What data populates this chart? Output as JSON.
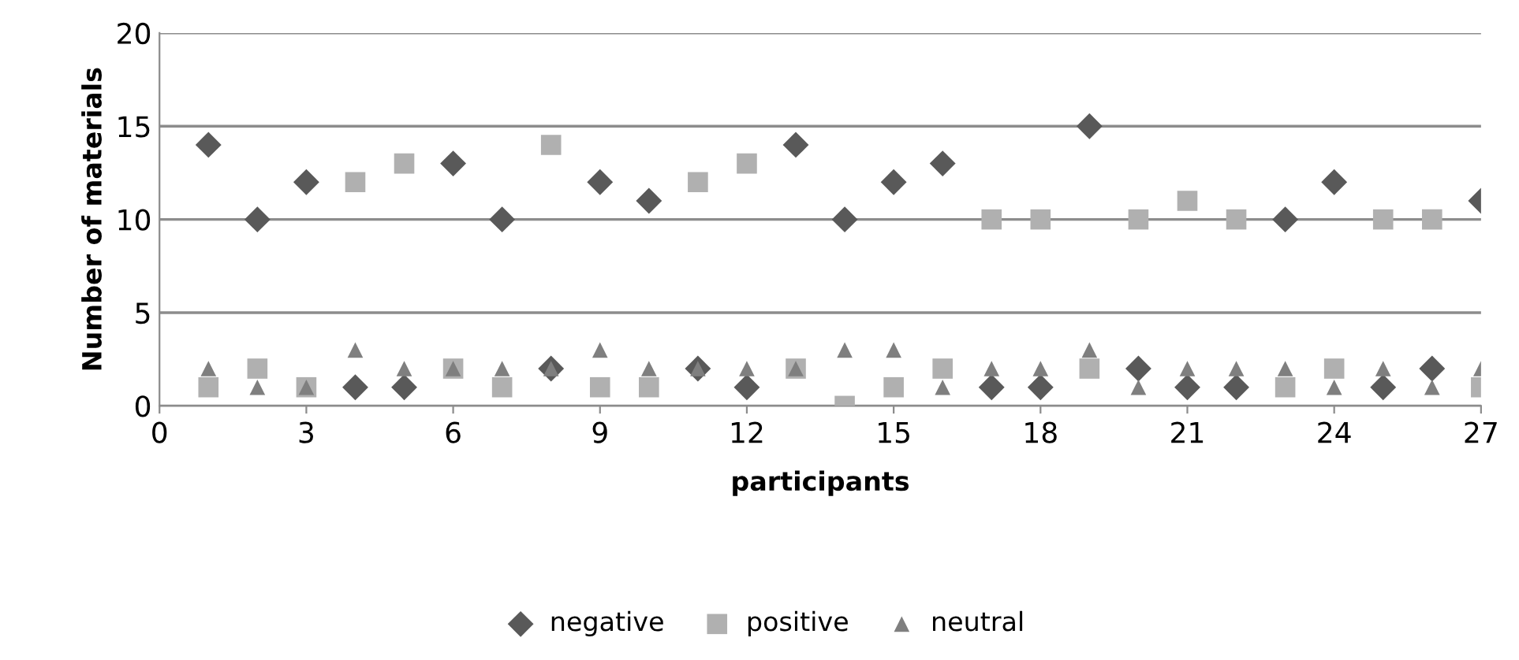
{
  "chart_data": {
    "type": "scatter",
    "xlabel": "participants",
    "ylabel": "Number of materials",
    "x": [
      1,
      2,
      3,
      4,
      5,
      6,
      7,
      8,
      9,
      10,
      11,
      12,
      13,
      14,
      15,
      16,
      17,
      18,
      19,
      20,
      21,
      22,
      23,
      24,
      25,
      26,
      27
    ],
    "series": [
      {
        "name": "negative",
        "color": "#595959",
        "marker": "diamond",
        "values": [
          14,
          10,
          12,
          1,
          1,
          13,
          10,
          2,
          12,
          11,
          2,
          1,
          14,
          10,
          12,
          13,
          1,
          1,
          15,
          2,
          1,
          1,
          10,
          12,
          1,
          2,
          11
        ]
      },
      {
        "name": "positive",
        "color": "#b0b0b0",
        "marker": "square",
        "values": [
          1,
          2,
          1,
          12,
          13,
          2,
          1,
          14,
          1,
          1,
          12,
          13,
          2,
          0,
          1,
          2,
          10,
          10,
          2,
          10,
          11,
          10,
          1,
          2,
          10,
          10,
          1
        ]
      },
      {
        "name": "neutral",
        "color": "#7f7f7f",
        "marker": "triangle",
        "values": [
          2,
          1,
          1,
          3,
          2,
          2,
          2,
          2,
          3,
          2,
          2,
          2,
          2,
          3,
          3,
          1,
          2,
          2,
          3,
          1,
          2,
          2,
          2,
          1,
          2,
          1,
          2
        ]
      }
    ],
    "xlim": [
      0,
      27
    ],
    "xticks": [
      0,
      3,
      6,
      9,
      12,
      15,
      18,
      21,
      24,
      27
    ],
    "ylim": [
      0,
      20
    ],
    "yticks": [
      0,
      5,
      10,
      15,
      20
    ],
    "grid": "y",
    "legend": "bottom"
  }
}
